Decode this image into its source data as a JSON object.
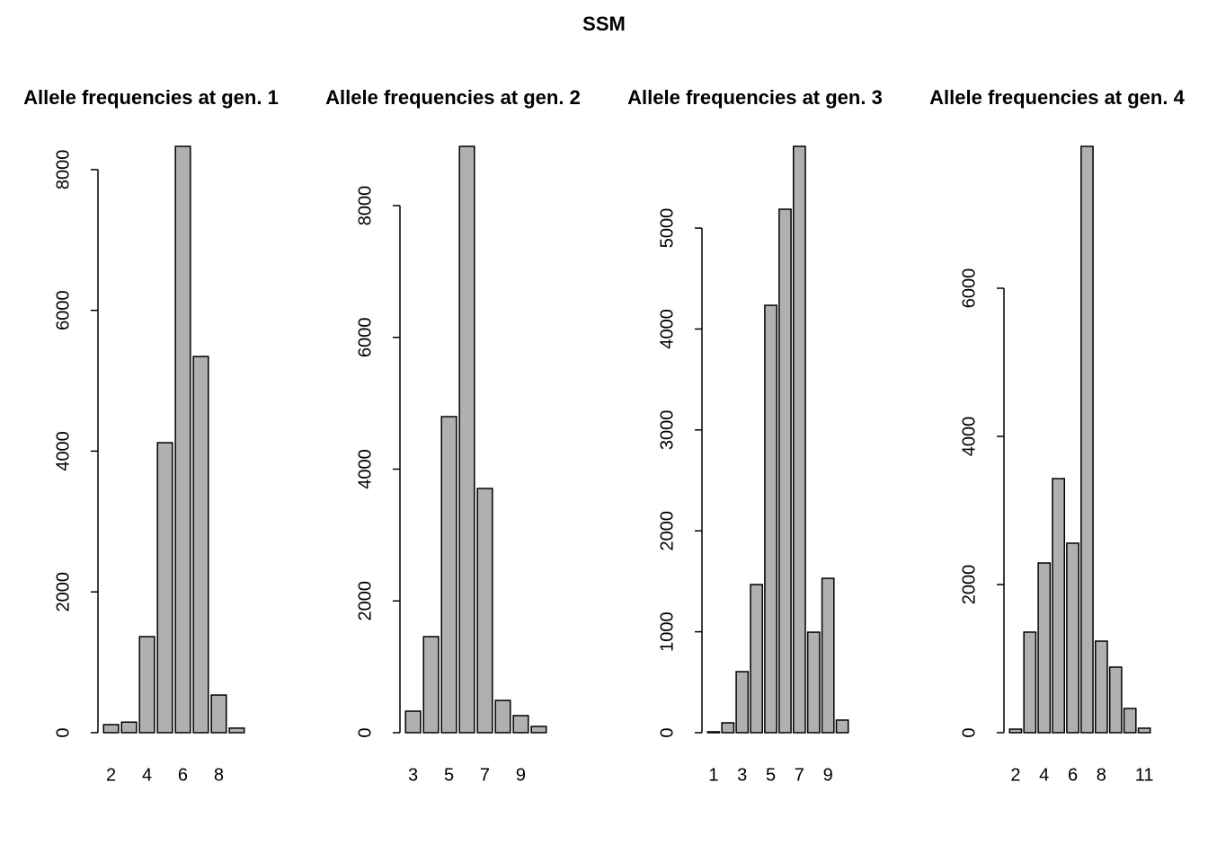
{
  "title": "SSM",
  "chart_data": [
    {
      "type": "bar",
      "title": "Allele frequencies at gen. 1",
      "color": "#b0b0b0",
      "categories": [
        "2",
        null,
        "4",
        null,
        "6",
        null,
        "8",
        null
      ],
      "values": [
        115,
        150,
        1365,
        4120,
        8330,
        5345,
        535,
        65
      ],
      "ylim": [
        0,
        8330
      ],
      "yticks": [
        0,
        2000,
        4000,
        6000,
        8000
      ]
    },
    {
      "type": "bar",
      "title": "Allele frequencies at gen. 2",
      "color": "#b0b0b0",
      "categories": [
        "3",
        null,
        "5",
        null,
        "7",
        null,
        "9",
        null
      ],
      "values": [
        327,
        1458,
        4797,
        8899,
        3707,
        490,
        259,
        95
      ],
      "ylim": [
        0,
        8899
      ],
      "yticks": [
        0,
        2000,
        4000,
        6000,
        8000
      ]
    },
    {
      "type": "bar",
      "title": "Allele frequencies at gen. 3",
      "color": "#b0b0b0",
      "categories": [
        "1",
        null,
        "3",
        null,
        "5",
        null,
        "7",
        null,
        "9",
        null
      ],
      "values": [
        9,
        98,
        605,
        1468,
        4235,
        5187,
        5810,
        996,
        1530,
        125
      ],
      "ylim": [
        0,
        5810
      ],
      "yticks": [
        0,
        1000,
        2000,
        3000,
        4000,
        5000
      ]
    },
    {
      "type": "bar",
      "title": "Allele frequencies at gen. 4",
      "color": "#b0b0b0",
      "categories": [
        "2",
        null,
        "4",
        null,
        "6",
        null,
        "8",
        null,
        null,
        "11"
      ],
      "values": [
        48,
        1358,
        2291,
        3430,
        2558,
        7915,
        1236,
        885,
        327,
        61
      ],
      "ylim": [
        0,
        7915
      ],
      "yticks": [
        0,
        2000,
        4000,
        6000
      ]
    }
  ]
}
